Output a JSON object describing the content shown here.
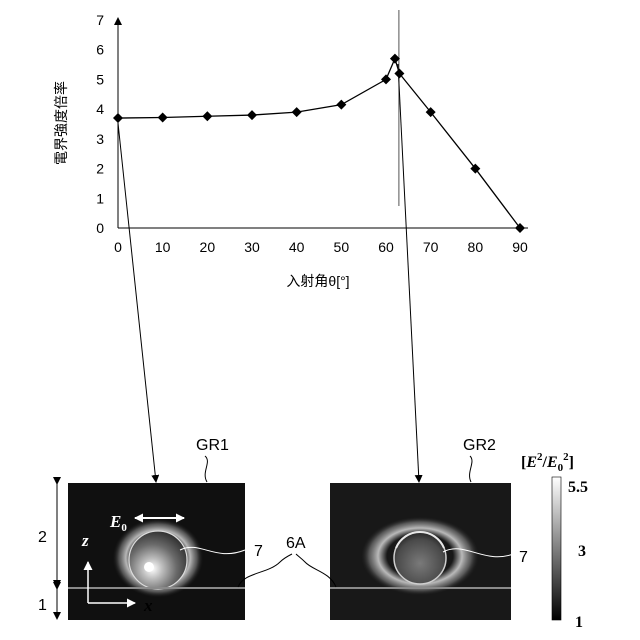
{
  "chart_data": {
    "type": "line",
    "ylabel": "電界強度倍率",
    "xlabel": "入射角θ[°]",
    "xlim": [
      0,
      90
    ],
    "ylim": [
      0,
      7
    ],
    "x_ticks": [
      0,
      10,
      20,
      30,
      40,
      50,
      60,
      70,
      80,
      90
    ],
    "y_ticks": [
      0,
      1,
      2,
      3,
      4,
      5,
      6,
      7
    ],
    "grid": false,
    "series": [
      {
        "marker": "diamond",
        "color": "#000000",
        "points": [
          {
            "x": 0,
            "y": 3.7
          },
          {
            "x": 10,
            "y": 3.72
          },
          {
            "x": 20,
            "y": 3.76
          },
          {
            "x": 30,
            "y": 3.8
          },
          {
            "x": 40,
            "y": 3.9
          },
          {
            "x": 50,
            "y": 4.15
          },
          {
            "x": 60,
            "y": 5.0
          },
          {
            "x": 62,
            "y": 5.7
          },
          {
            "x": 63,
            "y": 5.2
          },
          {
            "x": 70,
            "y": 3.9
          },
          {
            "x": 80,
            "y": 2.0
          },
          {
            "x": 90,
            "y": 0.0
          }
        ]
      }
    ],
    "reference_line_x": 63
  },
  "panels": {
    "left_label": "GR1",
    "right_label": "GR2",
    "field_label": "E",
    "field_sub": "0",
    "particle_ref": "7",
    "layer_ref": "6A",
    "axis_z": "z",
    "axis_x": "x",
    "region_top": "2",
    "region_bottom": "1"
  },
  "colorbar": {
    "title_open": "[",
    "title_e": "E",
    "title_sup": "2",
    "title_slash": "/",
    "title_e0": "E",
    "title_e0_sub": "0",
    "title_e0_sup": "2",
    "title_close": "]",
    "max": "5.5",
    "mid": "3",
    "min": "1"
  }
}
